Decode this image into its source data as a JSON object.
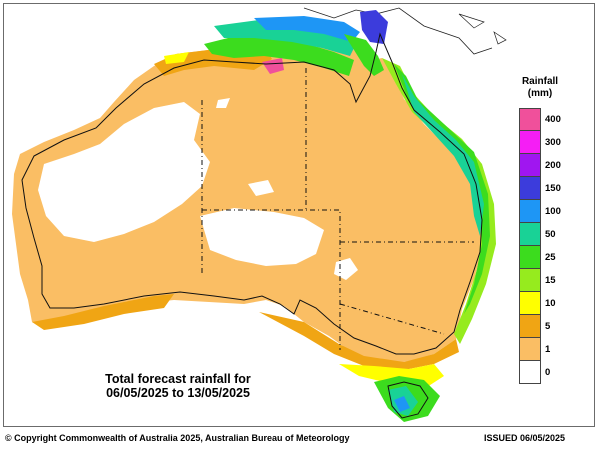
{
  "map": {
    "caption_line1": "Total forecast rainfall for",
    "caption_line2": "06/05/2025 to 13/05/2025"
  },
  "legend": {
    "title_line1": "Rainfall",
    "title_line2": "(mm)",
    "items": [
      {
        "label": "400",
        "color": "#f0509b"
      },
      {
        "label": "300",
        "color": "#f51ef5"
      },
      {
        "label": "200",
        "color": "#a016f0"
      },
      {
        "label": "150",
        "color": "#3c3cdc"
      },
      {
        "label": "100",
        "color": "#1e96f5"
      },
      {
        "label": "50",
        "color": "#19d296"
      },
      {
        "label": "25",
        "color": "#3cdc1e"
      },
      {
        "label": "15",
        "color": "#96eb1e"
      },
      {
        "label": "10",
        "color": "#ffff00"
      },
      {
        "label": "5",
        "color": "#f0a514"
      },
      {
        "label": "1",
        "color": "#fabe64"
      },
      {
        "label": "0",
        "color": "#ffffff"
      }
    ]
  },
  "footer": {
    "copyright": "© Copyright Commonwealth of Australia 2025, Australian Bureau of Meteorology",
    "issued": "ISSUED 06/05/2025"
  }
}
